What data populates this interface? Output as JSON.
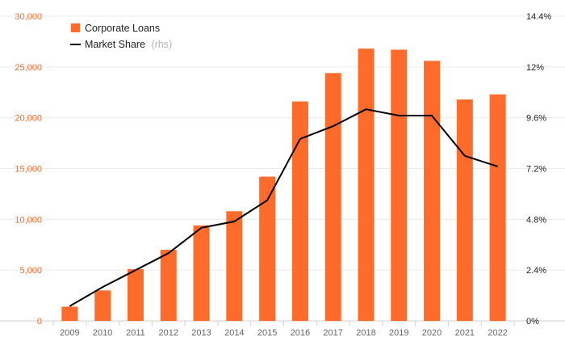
{
  "chart_data": {
    "type": "bar",
    "categories": [
      "2009",
      "2010",
      "2011",
      "2012",
      "2013",
      "2014",
      "2015",
      "2016",
      "2017",
      "2018",
      "2019",
      "2020",
      "2021",
      "2022"
    ],
    "series": [
      {
        "name": "Corporate Loans",
        "kind": "bar",
        "axis": "left",
        "color": "#ff6b2b",
        "values": [
          1400,
          3000,
          5100,
          7000,
          9400,
          10800,
          14200,
          21600,
          24400,
          26800,
          26700,
          25600,
          21800,
          22300
        ]
      },
      {
        "name": "Market Share",
        "axis_note": "(rhs)",
        "kind": "line",
        "axis": "right",
        "color": "#000000",
        "values": [
          0.7,
          1.6,
          2.4,
          3.2,
          4.4,
          4.7,
          5.7,
          8.6,
          9.2,
          10.0,
          9.7,
          9.7,
          7.8,
          7.3
        ]
      }
    ],
    "y_left": {
      "ylim": [
        0,
        30000
      ],
      "ticks": [
        0,
        5000,
        10000,
        15000,
        20000,
        25000,
        30000
      ],
      "tick_labels": [
        "0",
        "5,000",
        "10,000",
        "15,000",
        "20,000",
        "25,000",
        "30,000"
      ],
      "color": "#f26a2a"
    },
    "y_right": {
      "ylim": [
        0,
        14.4
      ],
      "ticks": [
        0,
        2.4,
        4.8,
        7.2,
        9.6,
        12,
        14.4
      ],
      "tick_labels": [
        "0%",
        "2.4%",
        "4.8%",
        "7.2%",
        "9.6%",
        "12%",
        "14.4%"
      ]
    },
    "legend": {
      "position": "top-left",
      "items": [
        {
          "label": "Corporate Loans",
          "suffix": "",
          "marker": "square"
        },
        {
          "label": "Market Share",
          "suffix": "(rhs)",
          "marker": "line"
        }
      ]
    },
    "grid": true,
    "title": "",
    "xlabel": "",
    "ylabel": ""
  }
}
